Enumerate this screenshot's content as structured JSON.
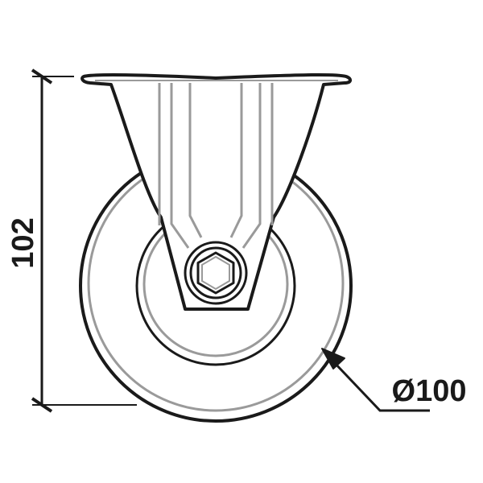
{
  "drawing": {
    "height_dimension": "102",
    "diameter_dimension": "Ø100"
  },
  "colors": {
    "outline": "#1a1a1a",
    "inner_line": "#9a9a9a",
    "background": "#ffffff"
  }
}
